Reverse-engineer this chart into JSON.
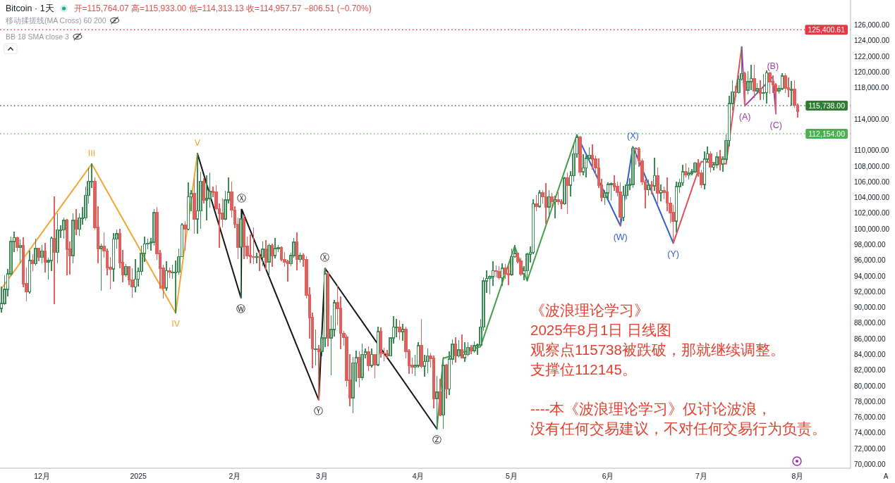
{
  "chart_data": {
    "type": "candlestick",
    "title": "Bitcoin · 1天",
    "x": [
      "2024-11-18",
      "2024-11-19",
      "2024-11-20",
      "2024-11-21",
      "2024-11-22",
      "2024-11-23",
      "2024-11-24",
      "2024-11-25",
      "2024-11-26",
      "2024-11-27",
      "2024-11-28",
      "2024-11-29",
      "2024-11-30",
      "2024-12-01",
      "2024-12-02",
      "2024-12-03",
      "2024-12-04",
      "2024-12-05",
      "2024-12-06",
      "2024-12-07",
      "2024-12-08",
      "2024-12-09",
      "2024-12-10",
      "2024-12-11",
      "2024-12-12",
      "2024-12-13",
      "2024-12-14",
      "2024-12-15",
      "2024-12-16",
      "2024-12-17",
      "2024-12-18",
      "2024-12-19",
      "2024-12-20",
      "2024-12-21",
      "2024-12-22",
      "2024-12-23",
      "2024-12-24",
      "2024-12-25",
      "2024-12-26",
      "2024-12-27",
      "2024-12-28",
      "2024-12-29",
      "2024-12-30",
      "2024-12-31",
      "2025-01-01",
      "2025-01-02",
      "2025-01-03",
      "2025-01-04",
      "2025-01-05",
      "2025-01-06",
      "2025-01-07",
      "2025-01-08",
      "2025-01-09",
      "2025-01-10",
      "2025-01-11",
      "2025-01-12",
      "2025-01-13",
      "2025-01-14",
      "2025-01-15",
      "2025-01-16",
      "2025-01-17",
      "2025-01-18",
      "2025-01-19",
      "2025-01-20",
      "2025-01-21",
      "2025-01-22",
      "2025-01-23",
      "2025-01-24",
      "2025-01-25",
      "2025-01-26",
      "2025-01-27",
      "2025-01-28",
      "2025-01-29",
      "2025-01-30",
      "2025-01-31",
      "2025-02-01",
      "2025-02-02",
      "2025-02-03",
      "2025-02-04",
      "2025-02-05",
      "2025-02-06",
      "2025-02-07",
      "2025-02-08",
      "2025-02-09",
      "2025-02-10",
      "2025-02-11",
      "2025-02-12",
      "2025-02-13",
      "2025-02-14",
      "2025-02-15",
      "2025-02-16",
      "2025-02-17",
      "2025-02-18",
      "2025-02-19",
      "2025-02-20",
      "2025-02-21",
      "2025-02-22",
      "2025-02-23",
      "2025-02-24",
      "2025-02-25",
      "2025-02-26",
      "2025-02-27",
      "2025-02-28",
      "2025-03-01",
      "2025-03-02",
      "2025-03-03",
      "2025-03-04",
      "2025-03-05",
      "2025-03-06",
      "2025-03-07",
      "2025-03-08",
      "2025-03-09",
      "2025-03-10",
      "2025-03-11",
      "2025-03-12",
      "2025-03-13",
      "2025-03-14",
      "2025-03-15",
      "2025-03-16",
      "2025-03-17",
      "2025-03-18",
      "2025-03-19",
      "2025-03-20",
      "2025-03-21",
      "2025-03-22",
      "2025-03-23",
      "2025-03-24",
      "2025-03-25",
      "2025-03-26",
      "2025-03-27",
      "2025-03-28",
      "2025-03-29",
      "2025-03-30",
      "2025-03-31",
      "2025-04-01",
      "2025-04-02",
      "2025-04-03",
      "2025-04-04",
      "2025-04-05",
      "2025-04-06",
      "2025-04-07",
      "2025-04-08",
      "2025-04-09",
      "2025-04-10",
      "2025-04-11",
      "2025-04-12",
      "2025-04-13",
      "2025-04-14",
      "2025-04-15",
      "2025-04-16",
      "2025-04-17",
      "2025-04-18",
      "2025-04-19",
      "2025-04-20",
      "2025-04-21",
      "2025-04-22",
      "2025-04-23",
      "2025-04-24",
      "2025-04-25",
      "2025-04-26",
      "2025-04-27",
      "2025-04-28",
      "2025-04-29",
      "2025-04-30",
      "2025-05-01",
      "2025-05-02",
      "2025-05-03",
      "2025-05-04",
      "2025-05-05",
      "2025-05-06",
      "2025-05-07",
      "2025-05-08",
      "2025-05-09",
      "2025-05-10",
      "2025-05-11",
      "2025-05-12",
      "2025-05-13",
      "2025-05-14",
      "2025-05-15",
      "2025-05-16",
      "2025-05-17",
      "2025-05-18",
      "2025-05-19",
      "2025-05-20",
      "2025-05-21",
      "2025-05-22",
      "2025-05-23",
      "2025-05-24",
      "2025-05-25",
      "2025-05-26",
      "2025-05-27",
      "2025-05-28",
      "2025-05-29",
      "2025-05-30",
      "2025-05-31",
      "2025-06-01",
      "2025-06-02",
      "2025-06-03",
      "2025-06-04",
      "2025-06-05",
      "2025-06-06",
      "2025-06-07",
      "2025-06-08",
      "2025-06-09",
      "2025-06-10",
      "2025-06-11",
      "2025-06-12",
      "2025-06-13",
      "2025-06-14",
      "2025-06-15",
      "2025-06-16",
      "2025-06-17",
      "2025-06-18",
      "2025-06-19",
      "2025-06-20",
      "2025-06-21",
      "2025-06-22",
      "2025-06-23",
      "2025-06-24",
      "2025-06-25",
      "2025-06-26",
      "2025-06-27",
      "2025-06-28",
      "2025-06-29",
      "2025-06-30",
      "2025-07-01",
      "2025-07-02",
      "2025-07-03",
      "2025-07-04",
      "2025-07-05",
      "2025-07-06",
      "2025-07-07",
      "2025-07-08",
      "2025-07-09",
      "2025-07-10",
      "2025-07-11",
      "2025-07-12",
      "2025-07-13",
      "2025-07-14",
      "2025-07-15",
      "2025-07-16",
      "2025-07-17",
      "2025-07-18",
      "2025-07-19",
      "2025-07-20",
      "2025-07-21",
      "2025-07-22",
      "2025-07-23",
      "2025-07-24",
      "2025-07-25",
      "2025-07-26",
      "2025-07-27",
      "2025-07-28",
      "2025-07-29",
      "2025-07-30",
      "2025-07-31",
      "2025-08-01"
    ],
    "ohlc": [
      [
        89900,
        92600,
        89400,
        90500
      ],
      [
        90500,
        94000,
        90400,
        92300
      ],
      [
        92300,
        94800,
        91500,
        94300
      ],
      [
        94300,
        99000,
        94100,
        98400
      ],
      [
        98400,
        99600,
        97100,
        98900
      ],
      [
        98900,
        99000,
        97200,
        97700
      ],
      [
        97700,
        98600,
        95700,
        97900
      ],
      [
        97900,
        98900,
        92600,
        93000
      ],
      [
        93000,
        95000,
        90800,
        92000
      ],
      [
        92000,
        97200,
        91800,
        96000
      ],
      [
        96000,
        96700,
        94700,
        95600
      ],
      [
        95600,
        98700,
        95400,
        97500
      ],
      [
        97500,
        97500,
        96000,
        96400
      ],
      [
        96400,
        97900,
        95700,
        97200
      ],
      [
        97200,
        98200,
        94500,
        95800
      ],
      [
        95800,
        96300,
        93600,
        96000
      ],
      [
        96000,
        99000,
        94700,
        98800
      ],
      [
        98800,
        104100,
        90500,
        97000
      ],
      [
        97000,
        101900,
        95700,
        99900
      ],
      [
        99900,
        100400,
        98900,
        99900
      ],
      [
        99900,
        101400,
        98800,
        101100
      ],
      [
        101100,
        101200,
        94200,
        97400
      ],
      [
        97400,
        98300,
        94300,
        96600
      ],
      [
        96600,
        101900,
        95700,
        101100
      ],
      [
        101100,
        102500,
        99300,
        100000
      ],
      [
        100000,
        101900,
        99200,
        101400
      ],
      [
        101400,
        102700,
        100600,
        101400
      ],
      [
        101400,
        105300,
        101200,
        104300
      ],
      [
        104300,
        107800,
        103300,
        106100
      ],
      [
        106100,
        108300,
        105300,
        106100
      ],
      [
        106100,
        106500,
        100000,
        100200
      ],
      [
        100200,
        102800,
        95700,
        97500
      ],
      [
        97500,
        98100,
        92200,
        97800
      ],
      [
        97800,
        99500,
        96400,
        97200
      ],
      [
        97200,
        97400,
        94200,
        95100
      ],
      [
        95100,
        96400,
        92400,
        94900
      ],
      [
        94900,
        99400,
        93400,
        98700
      ],
      [
        98700,
        99900,
        97600,
        99400
      ],
      [
        99400,
        100000,
        95100,
        95700
      ],
      [
        95700,
        97300,
        93300,
        94200
      ],
      [
        94200,
        95500,
        94000,
        95200
      ],
      [
        95200,
        95200,
        92900,
        93500
      ],
      [
        93500,
        94900,
        91300,
        92600
      ],
      [
        92600,
        96100,
        92000,
        93600
      ],
      [
        93600,
        95000,
        92700,
        94600
      ],
      [
        94600,
        97800,
        94200,
        96900
      ],
      [
        96900,
        99000,
        95900,
        98100
      ],
      [
        98100,
        98700,
        97500,
        98200
      ],
      [
        98200,
        98800,
        97300,
        98300
      ],
      [
        98300,
        102500,
        97900,
        102100
      ],
      [
        102100,
        102700,
        96100,
        96900
      ],
      [
        96900,
        97300,
        92500,
        95000
      ],
      [
        95000,
        95400,
        91200,
        92500
      ],
      [
        92500,
        95800,
        92200,
        94700
      ],
      [
        94700,
        95000,
        93800,
        94500
      ],
      [
        94500,
        95400,
        93700,
        94500
      ],
      [
        94500,
        95900,
        89300,
        94500
      ],
      [
        94500,
        97400,
        94300,
        96500
      ],
      [
        96500,
        100700,
        96500,
        100500
      ],
      [
        100500,
        100900,
        97300,
        100000
      ],
      [
        100000,
        105900,
        99900,
        104100
      ],
      [
        104100,
        104900,
        102300,
        104500
      ],
      [
        104500,
        106300,
        99500,
        101300
      ],
      [
        101300,
        109600,
        99500,
        102300
      ],
      [
        102300,
        107200,
        100100,
        106100
      ],
      [
        106100,
        106400,
        103300,
        103700
      ],
      [
        103700,
        106800,
        101200,
        103900
      ],
      [
        103900,
        107100,
        102800,
        104800
      ],
      [
        104800,
        105300,
        104100,
        104700
      ],
      [
        104700,
        105500,
        102500,
        102600
      ],
      [
        102600,
        103200,
        97700,
        102000
      ],
      [
        102000,
        103800,
        100300,
        101300
      ],
      [
        101300,
        104800,
        101200,
        103700
      ],
      [
        103700,
        106500,
        103300,
        104700
      ],
      [
        104700,
        106000,
        101500,
        102400
      ],
      [
        102400,
        102800,
        100200,
        100600
      ],
      [
        100600,
        101400,
        96200,
        97700
      ],
      [
        97700,
        102500,
        91200,
        101300
      ],
      [
        101300,
        101700,
        96200,
        97800
      ],
      [
        97800,
        99000,
        96200,
        96600
      ],
      [
        96600,
        99200,
        95700,
        96500
      ],
      [
        96500,
        100100,
        95600,
        96400
      ],
      [
        96400,
        96900,
        95700,
        96500
      ],
      [
        96500,
        97300,
        94700,
        96400
      ],
      [
        96400,
        98300,
        95300,
        97400
      ],
      [
        97400,
        98500,
        94900,
        95800
      ],
      [
        95800,
        98100,
        94100,
        97900
      ],
      [
        97900,
        98100,
        95200,
        96600
      ],
      [
        96600,
        98800,
        96300,
        97500
      ],
      [
        97500,
        97900,
        97100,
        97600
      ],
      [
        97600,
        97700,
        96000,
        96100
      ],
      [
        96100,
        97000,
        95200,
        95800
      ],
      [
        95800,
        96000,
        93400,
        95600
      ],
      [
        95600,
        96900,
        95300,
        96600
      ],
      [
        96600,
        98800,
        96400,
        98300
      ],
      [
        98300,
        99500,
        94800,
        96100
      ],
      [
        96100,
        96900,
        95800,
        96600
      ],
      [
        96600,
        96800,
        95200,
        96100
      ],
      [
        96100,
        96500,
        91200,
        91600
      ],
      [
        91600,
        92500,
        86100,
        88700
      ],
      [
        88700,
        89300,
        82300,
        84700
      ],
      [
        84700,
        87100,
        82700,
        84700
      ],
      [
        84700,
        85100,
        78200,
        84400
      ],
      [
        84400,
        86500,
        83800,
        86100
      ],
      [
        86100,
        95000,
        85000,
        94300
      ],
      [
        94300,
        94400,
        85100,
        86100
      ],
      [
        86100,
        88900,
        81400,
        87200
      ],
      [
        87200,
        90900,
        86400,
        90600
      ],
      [
        90600,
        92800,
        87800,
        89900
      ],
      [
        89900,
        91300,
        84700,
        86700
      ],
      [
        86700,
        86900,
        85200,
        86200
      ],
      [
        86200,
        86500,
        80000,
        80700
      ],
      [
        80700,
        84000,
        77500,
        78500
      ],
      [
        78500,
        83600,
        76600,
        82900
      ],
      [
        82900,
        84400,
        80600,
        83600
      ],
      [
        83600,
        84300,
        79900,
        81100
      ],
      [
        81100,
        85300,
        80800,
        84000
      ],
      [
        84000,
        84700,
        83600,
        84300
      ],
      [
        84300,
        85000,
        82000,
        82600
      ],
      [
        82600,
        84700,
        82400,
        84000
      ],
      [
        84000,
        84000,
        81100,
        82700
      ],
      [
        82700,
        87500,
        82600,
        86900
      ],
      [
        86900,
        87400,
        83700,
        84200
      ],
      [
        84200,
        84800,
        83200,
        84100
      ],
      [
        84100,
        84500,
        83700,
        83800
      ],
      [
        83800,
        86100,
        83800,
        86100
      ],
      [
        86100,
        88800,
        85500,
        87500
      ],
      [
        87500,
        88500,
        86300,
        87500
      ],
      [
        87500,
        88300,
        85900,
        86900
      ],
      [
        86900,
        87800,
        85800,
        87200
      ],
      [
        87200,
        87500,
        83600,
        84400
      ],
      [
        84400,
        84600,
        81600,
        82600
      ],
      [
        82600,
        83500,
        81600,
        82400
      ],
      [
        82400,
        83900,
        81300,
        82600
      ],
      [
        82600,
        85500,
        82400,
        85100
      ],
      [
        85100,
        88500,
        82300,
        82500
      ],
      [
        82500,
        83900,
        81200,
        83100
      ],
      [
        83100,
        84700,
        81700,
        83800
      ],
      [
        83800,
        84200,
        82400,
        83500
      ],
      [
        83500,
        83800,
        77200,
        78400
      ],
      [
        78400,
        81200,
        74500,
        79200
      ],
      [
        79200,
        80800,
        76200,
        76300
      ],
      [
        76300,
        83600,
        74600,
        82600
      ],
      [
        82600,
        82700,
        78500,
        79600
      ],
      [
        79600,
        84300,
        78900,
        83400
      ],
      [
        83400,
        85900,
        82800,
        85300
      ],
      [
        85300,
        86100,
        83000,
        83800
      ],
      [
        83800,
        85800,
        83700,
        84600
      ],
      [
        84600,
        86500,
        83600,
        83600
      ],
      [
        83600,
        85500,
        83100,
        84000
      ],
      [
        84000,
        85500,
        83800,
        84900
      ],
      [
        84900,
        85100,
        84100,
        84500
      ],
      [
        84500,
        85600,
        84300,
        85100
      ],
      [
        85100,
        85300,
        84000,
        85200
      ],
      [
        85200,
        88500,
        85100,
        87500
      ],
      [
        87500,
        93800,
        87100,
        93400
      ],
      [
        93400,
        94700,
        91900,
        93700
      ],
      [
        93700,
        94000,
        91700,
        93900
      ],
      [
        93900,
        95800,
        92800,
        94700
      ],
      [
        94700,
        95300,
        93900,
        94600
      ],
      [
        94600,
        95200,
        93600,
        93800
      ],
      [
        93800,
        95600,
        92800,
        95000
      ],
      [
        95000,
        95500,
        93700,
        94300
      ],
      [
        94300,
        95200,
        92900,
        94200
      ],
      [
        94200,
        97400,
        94100,
        96500
      ],
      [
        96500,
        97900,
        96400,
        96900
      ],
      [
        96900,
        96900,
        95700,
        95900
      ],
      [
        95900,
        96300,
        94100,
        94300
      ],
      [
        94300,
        95200,
        93500,
        94700
      ],
      [
        94700,
        96900,
        93400,
        96800
      ],
      [
        96800,
        97700,
        95800,
        97000
      ],
      [
        97000,
        103700,
        96900,
        103200
      ],
      [
        103200,
        104300,
        102300,
        102900
      ],
      [
        102900,
        104900,
        102800,
        104600
      ],
      [
        104600,
        104900,
        103300,
        104100
      ],
      [
        104100,
        105800,
        100700,
        102800
      ],
      [
        102800,
        104900,
        101400,
        104100
      ],
      [
        104100,
        104500,
        102600,
        103500
      ],
      [
        103500,
        104200,
        101400,
        103700
      ],
      [
        103700,
        104600,
        103100,
        103500
      ],
      [
        103500,
        103700,
        102600,
        103200
      ],
      [
        103200,
        106600,
        103100,
        106500
      ],
      [
        106500,
        107100,
        102000,
        105600
      ],
      [
        105600,
        107300,
        104200,
        106800
      ],
      [
        106800,
        110800,
        106100,
        109600
      ],
      [
        109600,
        112000,
        109200,
        111700
      ],
      [
        111700,
        111800,
        106800,
        107300
      ],
      [
        107300,
        109500,
        106900,
        107800
      ],
      [
        107800,
        109300,
        106600,
        109000
      ],
      [
        109000,
        110400,
        108600,
        109400
      ],
      [
        109400,
        110700,
        107600,
        108900
      ],
      [
        108900,
        109300,
        106800,
        107800
      ],
      [
        107800,
        108900,
        105300,
        105600
      ],
      [
        105600,
        106300,
        103600,
        104000
      ],
      [
        104000,
        104900,
        103100,
        104600
      ],
      [
        104600,
        105900,
        103900,
        105700
      ],
      [
        105700,
        105900,
        103700,
        105800
      ],
      [
        105800,
        106800,
        104900,
        105400
      ],
      [
        105400,
        106000,
        104200,
        104700
      ],
      [
        104700,
        105900,
        100400,
        101500
      ],
      [
        101500,
        105400,
        101100,
        104300
      ],
      [
        104300,
        105900,
        103900,
        105600
      ],
      [
        105600,
        106400,
        105000,
        105700
      ],
      [
        105700,
        110500,
        105300,
        110300
      ],
      [
        110300,
        110400,
        108300,
        110200
      ],
      [
        110200,
        110400,
        108000,
        108700
      ],
      [
        108700,
        108900,
        105700,
        106000
      ],
      [
        106000,
        106200,
        102700,
        105000
      ],
      [
        105000,
        106200,
        104300,
        105600
      ],
      [
        105600,
        106100,
        104500,
        105500
      ],
      [
        105500,
        109000,
        104900,
        106800
      ],
      [
        106800,
        107800,
        103300,
        104600
      ],
      [
        104600,
        105600,
        103600,
        104900
      ],
      [
        104900,
        105300,
        103900,
        104700
      ],
      [
        104700,
        106500,
        102300,
        103300
      ],
      [
        103300,
        104000,
        100800,
        102100
      ],
      [
        102100,
        103000,
        98200,
        101000
      ],
      [
        101000,
        106000,
        99600,
        105400
      ],
      [
        105400,
        106300,
        104700,
        105900
      ],
      [
        105900,
        108100,
        105600,
        107300
      ],
      [
        107300,
        108300,
        106600,
        106900
      ],
      [
        106900,
        107800,
        106400,
        107100
      ],
      [
        107100,
        107600,
        106900,
        107300
      ],
      [
        107300,
        108500,
        107200,
        108400
      ],
      [
        108400,
        108800,
        106700,
        107100
      ],
      [
        107100,
        107500,
        105300,
        105700
      ],
      [
        105700,
        109800,
        105100,
        108900
      ],
      [
        108900,
        110500,
        108600,
        109600
      ],
      [
        109600,
        109800,
        107300,
        107900
      ],
      [
        107900,
        108400,
        107500,
        108200
      ],
      [
        108200,
        109700,
        107800,
        109200
      ],
      [
        109200,
        110000,
        107500,
        108300
      ],
      [
        108300,
        109200,
        107400,
        108900
      ],
      [
        108900,
        112000,
        108400,
        111300
      ],
      [
        111300,
        116900,
        110600,
        116000
      ],
      [
        116000,
        118900,
        115200,
        117500
      ],
      [
        117500,
        118200,
        116900,
        117400
      ],
      [
        117400,
        119500,
        117300,
        119100
      ],
      [
        119100,
        123200,
        118900,
        119800
      ],
      [
        119800,
        120000,
        115700,
        117700
      ],
      [
        117700,
        120100,
        117200,
        118800
      ],
      [
        118800,
        120900,
        117800,
        119200
      ],
      [
        119200,
        120900,
        116800,
        117600
      ],
      [
        117600,
        118500,
        117300,
        117900
      ],
      [
        117900,
        118900,
        116500,
        117300
      ],
      [
        117300,
        119700,
        116500,
        117400
      ],
      [
        117400,
        120200,
        116100,
        119900
      ],
      [
        119900,
        120000,
        117300,
        118800
      ],
      [
        118800,
        119500,
        117400,
        118400
      ],
      [
        118400,
        118500,
        114700,
        117600
      ],
      [
        117600,
        118300,
        117300,
        117900
      ],
      [
        117900,
        119800,
        117800,
        119500
      ],
      [
        119500,
        119800,
        117400,
        118000
      ],
      [
        118000,
        119300,
        116900,
        117800
      ],
      [
        117800,
        118800,
        115800,
        117800
      ],
      [
        117800,
        118900,
        115500,
        115800
      ],
      [
        115764.07,
        115933.0,
        114313.13,
        114957.57
      ]
    ],
    "series": [
      {
        "type": "line",
        "color": "#f0a733",
        "x": [
          "2024-11-18",
          "2024-12-17",
          "2025-01-13",
          "2025-01-20"
        ],
        "values": [
          92400,
          108300,
          89300,
          109600
        ]
      },
      {
        "type": "line",
        "color": "#141414",
        "x": [
          "2025-01-20",
          "2025-02-03",
          "2025-02-03T06:00",
          "2025-02-28",
          "2025-03-02",
          "2025-04-07"
        ],
        "values": [
          109600,
          91200,
          102500,
          78200,
          95000,
          74500
        ]
      },
      {
        "type": "line",
        "color": "#43a047",
        "x": [
          "2025-04-07",
          "2025-04-09",
          "2025-04-21",
          "2025-05-02",
          "2025-05-06",
          "2025-05-22"
        ],
        "values": [
          74500,
          83500,
          85000,
          97800,
          93400,
          112000
        ]
      },
      {
        "type": "line",
        "color": "#2f5fc4",
        "x": [
          "2025-05-22",
          "2025-06-05",
          "2025-06-09",
          "2025-06-22"
        ],
        "values": [
          112000,
          100400,
          110500,
          98200
        ]
      },
      {
        "type": "line",
        "color": "#e0505a",
        "x": [
          "2025-06-22",
          "2025-07-01",
          "2025-07-09",
          "2025-07-14"
        ],
        "values": [
          98200,
          108600,
          108300,
          123200
        ]
      },
      {
        "type": "line",
        "color": "#a23aa8",
        "x": [
          "2025-07-14",
          "2025-07-15",
          "2025-07-24",
          "2025-07-25"
        ],
        "values": [
          123200,
          115700,
          119400,
          114700
        ]
      }
    ],
    "xlim": [
      "2024-11-17T12:00",
      "2025-08-18T00:00"
    ],
    "xticks": [
      {
        "value": "2024-12-01",
        "label": "12月"
      },
      {
        "value": "2025-01-01",
        "label": "2025"
      },
      {
        "value": "2025-02-01",
        "label": "2月"
      },
      {
        "value": "2025-03-01",
        "label": "3月"
      },
      {
        "value": "2025-04-01",
        "label": "4月"
      },
      {
        "value": "2025-05-01",
        "label": "5月"
      },
      {
        "value": "2025-06-01",
        "label": "6月"
      },
      {
        "value": "2025-07-01",
        "label": "7月"
      },
      {
        "value": "2025-08-01",
        "label": "8月"
      }
    ],
    "ylim": [
      69500,
      129200
    ],
    "yticks": [
      {
        "value": 70000,
        "label": "70,000.00"
      },
      {
        "value": 72000,
        "label": "72,000.00"
      },
      {
        "value": 74000,
        "label": "74,000.00"
      },
      {
        "value": 76000,
        "label": "76,000.00"
      },
      {
        "value": 78000,
        "label": "78,000.00"
      },
      {
        "value": 80000,
        "label": "80,000.00"
      },
      {
        "value": 82000,
        "label": "82,000.00"
      },
      {
        "value": 84000,
        "label": "84,000.00"
      },
      {
        "value": 86000,
        "label": "86,000.00"
      },
      {
        "value": 88000,
        "label": "88,000.00"
      },
      {
        "value": 90000,
        "label": "90,000.00"
      },
      {
        "value": 92000,
        "label": "92,000.00"
      },
      {
        "value": 94000,
        "label": "94,000.00"
      },
      {
        "value": 96000,
        "label": "96,000.00"
      },
      {
        "value": 98000,
        "label": "98,000.00"
      },
      {
        "value": 100000,
        "label": "100,000.00"
      },
      {
        "value": 102000,
        "label": "102,000.00"
      },
      {
        "value": 104000,
        "label": "104,000.00"
      },
      {
        "value": 106000,
        "label": "106,000.00"
      },
      {
        "value": 108000,
        "label": "108,000.00"
      },
      {
        "value": 110000,
        "label": "110,000.00"
      },
      {
        "value": 114000,
        "label": "114,000.00"
      },
      {
        "value": 118000,
        "label": "118,000.00"
      },
      {
        "value": 120000,
        "label": "120,000.00"
      },
      {
        "value": 122000,
        "label": "122,000.00"
      },
      {
        "value": 124000,
        "label": "124,000.00"
      },
      {
        "value": 126000,
        "label": "126,000.00"
      }
    ],
    "ref_lines": [
      {
        "axis": "y",
        "value": 125400.61,
        "label": "125,400.61",
        "color": "#e53945",
        "line_style": "dotted"
      },
      {
        "axis": "y",
        "value": 115738,
        "label": "115,738.00",
        "color": "#2e7d32",
        "line_style": "dotted"
      },
      {
        "axis": "y",
        "value": 112154,
        "label": "112,154.00",
        "color": "#4caf50",
        "line_style": "dotted"
      }
    ],
    "annotations": [
      "开=115,764.07 高=115,933.00 低=114,313.13 收=114,957.57 −806.51 (−0.70%)",
      "移动揉搓线(MA Cross) 60 200",
      "BB 18 SMA close 3",
      "《波浪理论学习》",
      "2025年8月1日 日线图",
      "观察点115738被跌破，那就继续调整。",
      "支撑位112145。",
      "----本《波浪理论学习》仅讨论波浪，",
      "没有任何交易建议，不对任何交易行为负责。",
      "A",
      {
        "text": "III",
        "x": "2024-12-17",
        "y": 108300
      },
      {
        "text": "IV",
        "x": "2025-01-13",
        "y": 89300
      },
      {
        "text": "V",
        "x": "2025-01-20",
        "y": 109600
      },
      {
        "text": "Ⓧ",
        "x": "2025-02-03T06:00",
        "y": 102500
      },
      {
        "text": "Ⓦ",
        "x": "2025-02-03",
        "y": 91200
      },
      {
        "text": "Ⓨ",
        "x": "2025-02-28",
        "y": 78200
      },
      {
        "text": "Ⓧ",
        "x": "2025-03-02",
        "y": 95000
      },
      {
        "text": "Ⓩ",
        "x": "2025-04-07",
        "y": 74500
      },
      {
        "text": "(W)",
        "x": "2025-06-05",
        "y": 100400
      },
      {
        "text": "(X)",
        "x": "2025-06-09",
        "y": 110500
      },
      {
        "text": "(Y)",
        "x": "2025-06-22",
        "y": 98200
      },
      {
        "text": "(A)",
        "x": "2025-07-15",
        "y": 115700
      },
      {
        "text": "(B)",
        "x": "2025-07-24",
        "y": 119400
      },
      {
        "text": "(C)",
        "x": "2025-07-25",
        "y": 114700
      }
    ]
  }
}
